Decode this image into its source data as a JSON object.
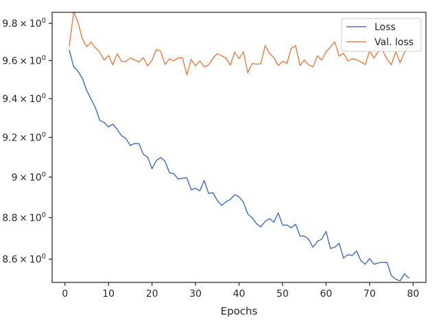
{
  "chart_data": {
    "type": "line",
    "title": "",
    "xlabel": "Epochs",
    "ylabel": "",
    "xlim": [
      -2.95,
      82.95
    ],
    "ylim": [
      8.49,
      9.86
    ],
    "y_scale": "log",
    "grid": false,
    "legend_position": "top-right",
    "x_ticks": [
      0,
      10,
      20,
      30,
      40,
      50,
      60,
      70,
      80
    ],
    "x_tick_labels": [
      "0",
      "10",
      "20",
      "30",
      "40",
      "50",
      "60",
      "70",
      "80"
    ],
    "y_ticks": [
      8.6,
      8.8,
      9.0,
      9.2,
      9.4,
      9.6,
      9.8
    ],
    "y_tick_labels": [
      {
        "mantissa": "8.6",
        "times": "×",
        "base": "10",
        "exp": "0"
      },
      {
        "mantissa": "8.8",
        "times": "×",
        "base": "10",
        "exp": "0"
      },
      {
        "mantissa": "9",
        "times": "×",
        "base": "10",
        "exp": "0"
      },
      {
        "mantissa": "9.2",
        "times": "×",
        "base": "10",
        "exp": "0"
      },
      {
        "mantissa": "9.4",
        "times": "×",
        "base": "10",
        "exp": "0"
      },
      {
        "mantissa": "9.6",
        "times": "×",
        "base": "10",
        "exp": "0"
      },
      {
        "mantissa": "9.8",
        "times": "×",
        "base": "10",
        "exp": "0"
      }
    ],
    "x": [
      1,
      2,
      3,
      4,
      5,
      6,
      7,
      8,
      9,
      10,
      11,
      12,
      13,
      14,
      15,
      16,
      17,
      18,
      19,
      20,
      21,
      22,
      23,
      24,
      25,
      26,
      27,
      28,
      29,
      30,
      31,
      32,
      33,
      34,
      35,
      36,
      37,
      38,
      39,
      40,
      41,
      42,
      43,
      44,
      45,
      46,
      47,
      48,
      49,
      50,
      51,
      52,
      53,
      54,
      55,
      56,
      57,
      58,
      59,
      60,
      61,
      62,
      63,
      64,
      65,
      66,
      67,
      68,
      69,
      70,
      71,
      72,
      73,
      74,
      75,
      76,
      77,
      78,
      79
    ],
    "series": [
      {
        "name": "Loss",
        "color": "#4c72b0",
        "values": [
          9.654,
          9.567,
          9.543,
          9.506,
          9.442,
          9.398,
          9.352,
          9.287,
          9.276,
          9.254,
          9.268,
          9.241,
          9.209,
          9.195,
          9.159,
          9.169,
          9.168,
          9.114,
          9.1,
          9.042,
          9.083,
          9.098,
          9.079,
          9.022,
          9.017,
          8.991,
          8.994,
          8.997,
          8.937,
          8.944,
          8.932,
          8.983,
          8.919,
          8.922,
          8.884,
          8.86,
          8.878,
          8.889,
          8.913,
          8.902,
          8.876,
          8.818,
          8.8,
          8.771,
          8.755,
          8.782,
          8.795,
          8.778,
          8.823,
          8.764,
          8.764,
          8.751,
          8.768,
          8.711,
          8.711,
          8.695,
          8.657,
          8.685,
          8.696,
          8.733,
          8.651,
          8.657,
          8.676,
          8.605,
          8.621,
          8.618,
          8.639,
          8.592,
          8.576,
          8.603,
          8.576,
          8.582,
          8.585,
          8.585,
          8.522,
          8.505,
          8.497,
          8.53,
          8.511
        ]
      },
      {
        "name": "Val. loss",
        "color": "#dd8452",
        "values": [
          9.679,
          9.862,
          9.805,
          9.716,
          9.674,
          9.699,
          9.668,
          9.644,
          9.603,
          9.627,
          9.577,
          9.637,
          9.595,
          9.596,
          9.613,
          9.604,
          9.592,
          9.616,
          9.572,
          9.601,
          9.659,
          9.649,
          9.58,
          9.609,
          9.599,
          9.614,
          9.616,
          9.524,
          9.606,
          9.572,
          9.598,
          9.566,
          9.577,
          9.613,
          9.637,
          9.626,
          9.613,
          9.576,
          9.645,
          9.611,
          9.647,
          9.535,
          9.584,
          9.581,
          9.583,
          9.68,
          9.638,
          9.616,
          9.574,
          9.596,
          9.585,
          9.666,
          9.679,
          9.574,
          9.603,
          9.577,
          9.567,
          9.625,
          9.603,
          9.647,
          9.672,
          9.7,
          9.624,
          9.639,
          9.598,
          9.61,
          9.605,
          9.593,
          9.579,
          9.652,
          9.613,
          9.648,
          9.653,
          9.607,
          9.578,
          9.648,
          9.589,
          9.643,
          9.675
        ]
      }
    ]
  }
}
